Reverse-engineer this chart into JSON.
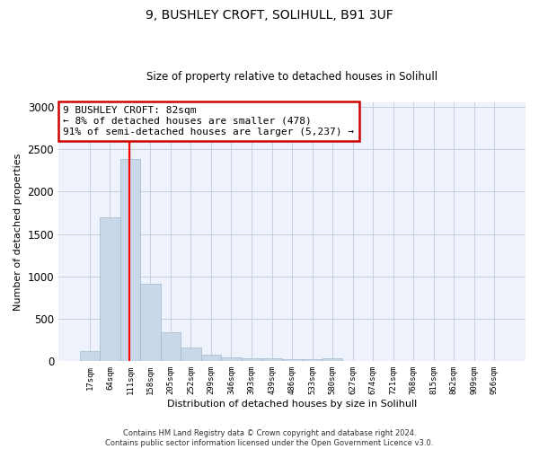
{
  "title1": "9, BUSHLEY CROFT, SOLIHULL, B91 3UF",
  "title2": "Size of property relative to detached houses in Solihull",
  "xlabel": "Distribution of detached houses by size in Solihull",
  "ylabel": "Number of detached properties",
  "bar_color": "#c8d8e8",
  "bar_edge_color": "#a0b8cc",
  "categories": [
    "17sqm",
    "64sqm",
    "111sqm",
    "158sqm",
    "205sqm",
    "252sqm",
    "299sqm",
    "346sqm",
    "393sqm",
    "439sqm",
    "486sqm",
    "533sqm",
    "580sqm",
    "627sqm",
    "674sqm",
    "721sqm",
    "768sqm",
    "815sqm",
    "862sqm",
    "909sqm",
    "956sqm"
  ],
  "values": [
    120,
    1700,
    2380,
    910,
    340,
    160,
    80,
    50,
    40,
    30,
    25,
    25,
    40,
    0,
    0,
    0,
    0,
    0,
    0,
    0,
    0
  ],
  "property_line_x": 1.97,
  "annotation_text": "9 BUSHLEY CROFT: 82sqm\n← 8% of detached houses are smaller (478)\n91% of semi-detached houses are larger (5,237) →",
  "annotation_box_color": "#cc0000",
  "annotation_bg": "#ffffff",
  "ylim": [
    0,
    3050
  ],
  "yticks": [
    0,
    500,
    1000,
    1500,
    2000,
    2500,
    3000
  ],
  "footer1": "Contains HM Land Registry data © Crown copyright and database right 2024.",
  "footer2": "Contains public sector information licensed under the Open Government Licence v3.0.",
  "bg_color": "#eef2fb",
  "grid_color": "#c5cde0"
}
